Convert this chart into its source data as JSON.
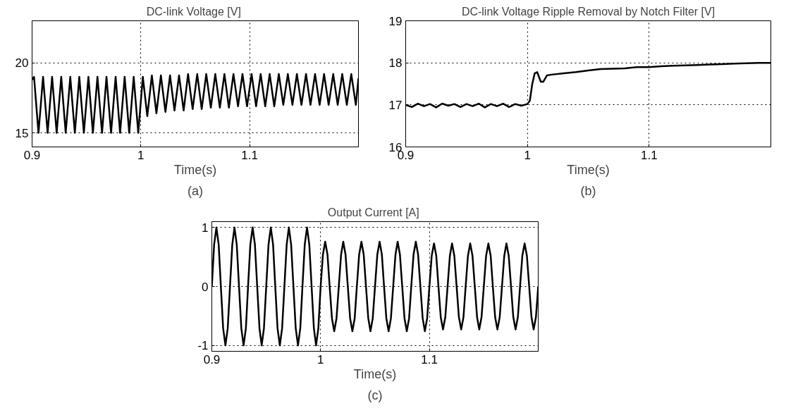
{
  "chart_data": [
    {
      "type": "line",
      "title": "DC-link Voltage  [V]",
      "xlabel": "Time(s)",
      "annotations": [
        "(a)"
      ],
      "xlim": [
        0.9,
        1.2
      ],
      "ylim": [
        14,
        23
      ],
      "xticks": [
        0.9,
        1,
        1.1
      ],
      "yticks": [
        15,
        20
      ],
      "grid": true,
      "line_style": "solid",
      "x": [
        0.9,
        0.9018,
        0.9059,
        0.9101,
        0.9143,
        0.9184,
        0.9226,
        0.9268,
        0.9309,
        0.9351,
        0.9393,
        0.9434,
        0.9476,
        0.9518,
        0.9559,
        0.9601,
        0.9643,
        0.9684,
        0.9726,
        0.9768,
        0.9809,
        0.9851,
        0.9893,
        0.9934,
        0.9976,
        1.0018,
        1.0059,
        1.0101,
        1.0143,
        1.0184,
        1.0226,
        1.0268,
        1.0309,
        1.0351,
        1.0393,
        1.0434,
        1.0476,
        1.0518,
        1.0559,
        1.0601,
        1.0643,
        1.0684,
        1.0726,
        1.0768,
        1.0809,
        1.0851,
        1.0893,
        1.0934,
        1.0976,
        1.1018,
        1.1059,
        1.1101,
        1.1143,
        1.1184,
        1.1226,
        1.1268,
        1.1309,
        1.1351,
        1.1393,
        1.1434,
        1.1476,
        1.1518,
        1.1559,
        1.1601,
        1.1643,
        1.1684,
        1.1726,
        1.1768,
        1.1809,
        1.1851,
        1.1893,
        1.1934,
        1.1976,
        1.2
      ],
      "series": [
        {
          "color": "#000000",
          "values": [
            18.8,
            19.0,
            15.0,
            19.0,
            15.0,
            19.0,
            15.0,
            19.0,
            15.0,
            19.0,
            15.0,
            19.0,
            15.0,
            19.0,
            15.0,
            19.0,
            15.0,
            19.0,
            15.0,
            19.0,
            15.0,
            19.0,
            15.0,
            19.0,
            15.0,
            19.0,
            16.2,
            19.1,
            16.4,
            19.1,
            16.5,
            19.1,
            16.6,
            19.1,
            16.6,
            19.2,
            16.7,
            19.2,
            16.7,
            19.2,
            16.8,
            19.2,
            16.8,
            19.2,
            16.8,
            19.2,
            16.9,
            19.2,
            16.9,
            19.2,
            16.9,
            19.2,
            16.9,
            19.2,
            16.9,
            19.2,
            17.0,
            19.2,
            17.0,
            19.2,
            17.0,
            19.2,
            17.0,
            19.2,
            17.0,
            19.2,
            17.0,
            19.2,
            17.0,
            19.2,
            17.0,
            19.2,
            17.0,
            18.9
          ]
        }
      ]
    },
    {
      "type": "line",
      "title": "DC-link Voltage Ripple Removal by Notch Filter [V]",
      "xlabel": "Time(s)",
      "annotations": [
        "(b)"
      ],
      "xlim": [
        0.9,
        1.2
      ],
      "ylim": [
        16,
        19
      ],
      "xticks": [
        0.9,
        1,
        1.1
      ],
      "yticks": [
        16,
        17,
        18,
        19
      ],
      "grid": true,
      "line_style": "solid",
      "x": [
        0.9,
        0.905,
        0.91,
        0.915,
        0.92,
        0.925,
        0.93,
        0.935,
        0.94,
        0.945,
        0.95,
        0.955,
        0.96,
        0.965,
        0.97,
        0.975,
        0.98,
        0.985,
        0.99,
        0.995,
        1.0,
        1.002,
        1.004,
        1.006,
        1.008,
        1.011,
        1.013,
        1.016,
        1.02,
        1.03,
        1.04,
        1.05,
        1.06,
        1.07,
        1.08,
        1.09,
        1.1,
        1.11,
        1.12,
        1.13,
        1.14,
        1.15,
        1.16,
        1.17,
        1.18,
        1.19,
        1.2
      ],
      "series": [
        {
          "color": "#000000",
          "values": [
            17.0,
            16.95,
            17.03,
            16.97,
            17.02,
            16.94,
            17.03,
            16.98,
            17.02,
            16.95,
            17.02,
            16.97,
            17.03,
            16.94,
            17.02,
            16.97,
            17.03,
            16.95,
            17.02,
            16.98,
            17.02,
            17.1,
            17.5,
            17.75,
            17.78,
            17.55,
            17.55,
            17.7,
            17.72,
            17.75,
            17.78,
            17.82,
            17.85,
            17.86,
            17.87,
            17.9,
            17.9,
            17.92,
            17.93,
            17.94,
            17.95,
            17.96,
            17.97,
            17.98,
            17.99,
            18.0,
            18.0
          ]
        }
      ]
    },
    {
      "type": "line",
      "title": "Output Current  [A]",
      "xlabel": "Time(s)",
      "annotations": [
        "(c)"
      ],
      "xlim": [
        0.9,
        1.2
      ],
      "ylim": [
        -1.1,
        1.1
      ],
      "xticks": [
        0.9,
        1,
        1.1
      ],
      "yticks": [
        -1,
        0,
        1
      ],
      "grid": true,
      "line_style": "solid",
      "x": [
        0.9,
        0.9021,
        0.9042,
        0.9063,
        0.9083,
        0.9104,
        0.9125,
        0.9146,
        0.9167,
        0.9188,
        0.9208,
        0.9229,
        0.925,
        0.9271,
        0.9292,
        0.9313,
        0.9333,
        0.9354,
        0.9375,
        0.9396,
        0.9417,
        0.9438,
        0.9458,
        0.9479,
        0.95,
        0.9521,
        0.9542,
        0.9563,
        0.9583,
        0.9604,
        0.9625,
        0.9646,
        0.9667,
        0.9688,
        0.9708,
        0.9729,
        0.975,
        0.9771,
        0.9792,
        0.9813,
        0.9833,
        0.9854,
        0.9875,
        0.9896,
        0.9917,
        0.9938,
        0.9958,
        0.9979,
        1.0,
        1.0021,
        1.0042,
        1.0063,
        1.0083,
        1.0104,
        1.0125,
        1.0146,
        1.0167,
        1.0188,
        1.0208,
        1.0229,
        1.025,
        1.0271,
        1.0292,
        1.0313,
        1.0333,
        1.0354,
        1.0375,
        1.0396,
        1.0417,
        1.0438,
        1.0458,
        1.0479,
        1.05,
        1.0521,
        1.0542,
        1.0563,
        1.0583,
        1.0604,
        1.0625,
        1.0646,
        1.0667,
        1.0688,
        1.0708,
        1.0729,
        1.075,
        1.0771,
        1.0792,
        1.0813,
        1.0833,
        1.0854,
        1.0875,
        1.0896,
        1.0917,
        1.0938,
        1.0958,
        1.0979,
        1.1,
        1.1021,
        1.1042,
        1.1063,
        1.1083,
        1.1104,
        1.1125,
        1.1146,
        1.1167,
        1.1188,
        1.1208,
        1.1229,
        1.125,
        1.1271,
        1.1292,
        1.1313,
        1.1333,
        1.1354,
        1.1375,
        1.1396,
        1.1417,
        1.1438,
        1.1458,
        1.1479,
        1.15,
        1.1521,
        1.1542,
        1.1563,
        1.1583,
        1.1604,
        1.1625,
        1.1646,
        1.1667,
        1.1688,
        1.1708,
        1.1729,
        1.175,
        1.1771,
        1.1792,
        1.1813,
        1.1833,
        1.1854,
        1.1875,
        1.1896,
        1.1917,
        1.1938,
        1.1958,
        1.1979,
        1.2
      ],
      "series": [
        {
          "color": "#000000",
          "values": [
            0,
            0.71,
            1,
            0.71,
            0,
            -0.71,
            -1,
            -0.71,
            0,
            0.71,
            1,
            0.71,
            0,
            -0.71,
            -1,
            -0.71,
            0,
            0.71,
            1,
            0.71,
            0,
            -0.71,
            -1,
            -0.71,
            0,
            0.71,
            1,
            0.71,
            0,
            -0.71,
            -1,
            -0.71,
            0,
            0.71,
            1,
            0.71,
            0,
            -0.71,
            -1,
            -0.71,
            0,
            0.71,
            1,
            0.71,
            0,
            -0.71,
            -1,
            -0.71,
            0,
            0.54,
            0.76,
            0.54,
            0,
            -0.54,
            -0.76,
            -0.54,
            0,
            0.54,
            0.76,
            0.54,
            0,
            -0.54,
            -0.76,
            -0.54,
            0,
            0.54,
            0.76,
            0.54,
            0,
            -0.54,
            -0.76,
            -0.54,
            0,
            0.54,
            0.76,
            0.54,
            0,
            -0.54,
            -0.76,
            -0.54,
            0,
            0.54,
            0.76,
            0.54,
            0,
            -0.54,
            -0.76,
            -0.54,
            0,
            0.54,
            0.76,
            0.54,
            0,
            -0.54,
            -0.76,
            -0.54,
            0,
            0.52,
            0.73,
            0.52,
            0,
            -0.52,
            -0.73,
            -0.52,
            0,
            0.52,
            0.73,
            0.52,
            0,
            -0.52,
            -0.73,
            -0.52,
            0,
            0.52,
            0.73,
            0.52,
            0,
            -0.52,
            -0.73,
            -0.52,
            0,
            0.52,
            0.73,
            0.52,
            0,
            -0.52,
            -0.73,
            -0.52,
            0,
            0.52,
            0.73,
            0.52,
            0,
            -0.52,
            -0.73,
            -0.52,
            0,
            0.52,
            0.73,
            0.52,
            0,
            -0.52,
            -0.73,
            -0.52,
            0
          ]
        }
      ]
    }
  ]
}
